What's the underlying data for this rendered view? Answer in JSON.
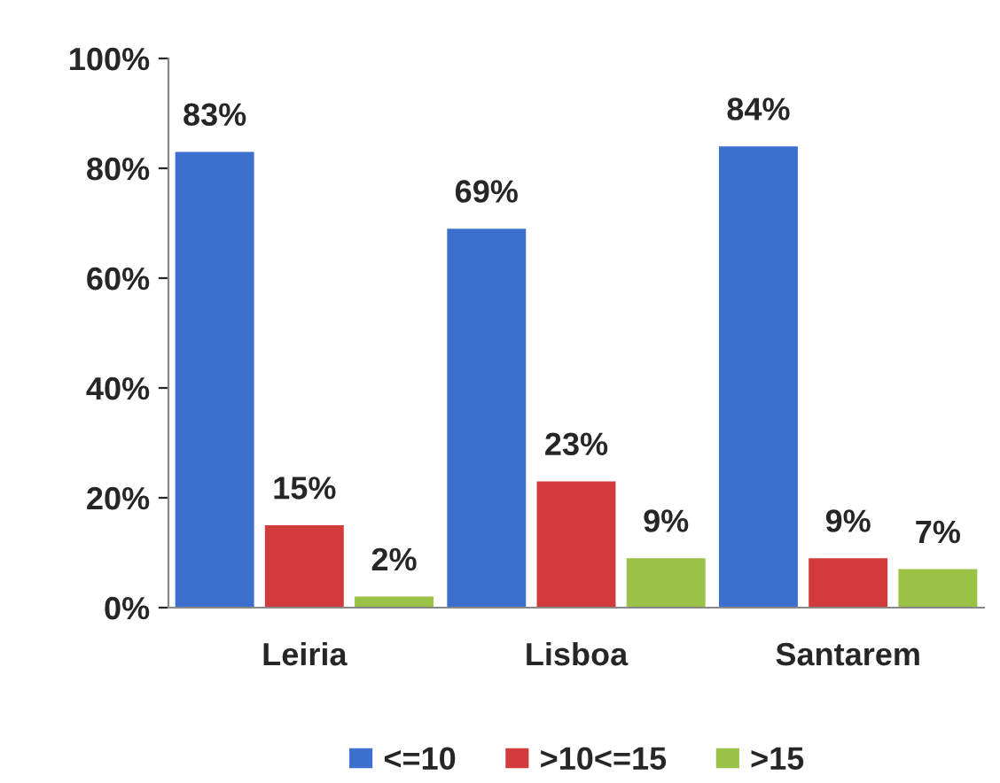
{
  "chart_data": {
    "type": "bar",
    "categories": [
      "Leiria",
      "Lisboa",
      "Santarem"
    ],
    "series": [
      {
        "name": "<=10",
        "color": "#3c6fce",
        "values": [
          83,
          69,
          84
        ],
        "value_labels": [
          "83%",
          "69%",
          "84%"
        ]
      },
      {
        "name": ">10<=15",
        "color": "#d13b3b",
        "values": [
          15,
          23,
          9
        ],
        "value_labels": [
          "15%",
          "23%",
          "9%"
        ]
      },
      {
        "name": ">15",
        "color": "#9bc146",
        "values": [
          2,
          9,
          7
        ],
        "value_labels": [
          "2%",
          "9%",
          "7%"
        ]
      }
    ],
    "ylim": [
      0,
      100
    ],
    "yticks": [
      {
        "value": 0,
        "label": "0%"
      },
      {
        "value": 20,
        "label": "20%"
      },
      {
        "value": 40,
        "label": "40%"
      },
      {
        "value": 60,
        "label": "60%"
      },
      {
        "value": 80,
        "label": "80%"
      },
      {
        "value": 100,
        "label": "100%"
      }
    ],
    "grid": false,
    "legend": "bottom"
  }
}
